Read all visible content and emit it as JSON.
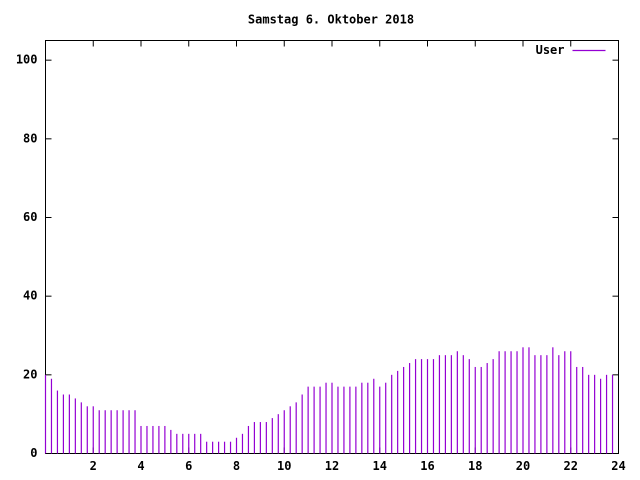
{
  "chart_data": {
    "type": "impulse",
    "title": "Samstag 6. Oktober 2018",
    "x": [
      0,
      0.25,
      0.5,
      0.75,
      1,
      1.25,
      1.5,
      1.75,
      2,
      2.25,
      2.5,
      2.75,
      3,
      3.25,
      3.5,
      3.75,
      4,
      4.25,
      4.5,
      4.75,
      5,
      5.25,
      5.5,
      5.75,
      6,
      6.25,
      6.5,
      6.75,
      7,
      7.25,
      7.5,
      7.75,
      8,
      8.25,
      8.5,
      8.75,
      9,
      9.25,
      9.5,
      9.75,
      10,
      10.25,
      10.5,
      10.75,
      11,
      11.25,
      11.5,
      11.75,
      12,
      12.25,
      12.5,
      12.75,
      13,
      13.25,
      13.5,
      13.75,
      14,
      14.25,
      14.5,
      14.75,
      15,
      15.25,
      15.5,
      15.75,
      16,
      16.25,
      16.5,
      16.75,
      17,
      17.25,
      17.5,
      17.75,
      18,
      18.25,
      18.5,
      18.75,
      19,
      19.25,
      19.5,
      19.75,
      20,
      20.25,
      20.5,
      20.75,
      21,
      21.25,
      21.5,
      21.75,
      22,
      22.25,
      22.5,
      22.75,
      23,
      23.25,
      23.5,
      23.75
    ],
    "series": [
      {
        "name": "User",
        "color": "#9400d3",
        "values": [
          20,
          19,
          16,
          15,
          15,
          14,
          13,
          12,
          12,
          11,
          11,
          11,
          11,
          11,
          11,
          11,
          7,
          7,
          7,
          7,
          7,
          6,
          5,
          5,
          5,
          5,
          5,
          3,
          3,
          3,
          3,
          3,
          4,
          5,
          7,
          8,
          8,
          8,
          9,
          10,
          11,
          12,
          13,
          15,
          17,
          17,
          17,
          18,
          18,
          17,
          17,
          17,
          17,
          18,
          18,
          19,
          17,
          18,
          20,
          21,
          22,
          23,
          24,
          24,
          24,
          24,
          25,
          25,
          25,
          26,
          25,
          24,
          22,
          22,
          23,
          24,
          26,
          26,
          26,
          26,
          27,
          27,
          25,
          25,
          25,
          27,
          25,
          26,
          26,
          22,
          22,
          20,
          20,
          19,
          20,
          20
        ]
      }
    ],
    "xlim": [
      0,
      24
    ],
    "xticks": [
      2,
      4,
      6,
      8,
      10,
      12,
      14,
      16,
      18,
      20,
      22,
      24
    ],
    "ylim": [
      0,
      105
    ],
    "yticks": [
      0,
      20,
      40,
      60,
      80,
      100
    ],
    "legend": "top-right"
  }
}
